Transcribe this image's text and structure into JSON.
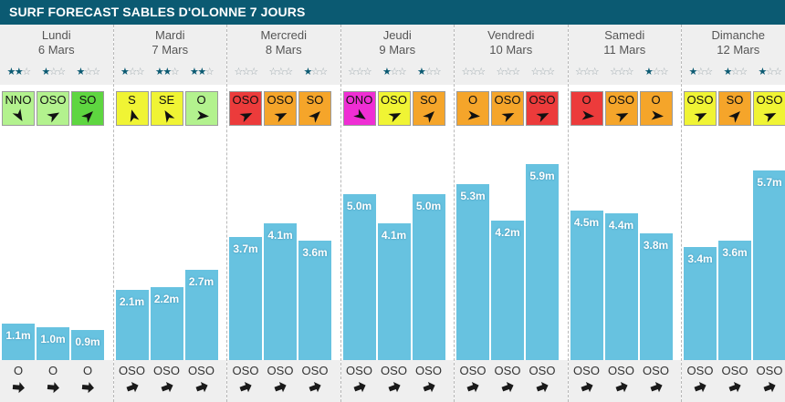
{
  "title": "SURF FORECAST SABLES D'OLONNE 7 JOURS",
  "colors": {
    "title_bg": "#0b5a72",
    "bar": "#67c2e0",
    "star_filled": "#0b5a72",
    "wind_light_green": "#b3f28e",
    "wind_green": "#5ed640",
    "wind_yellow": "#f0f434",
    "wind_orange": "#f5a52a",
    "wind_red": "#ec3b3b",
    "wind_magenta": "#ef2ed4"
  },
  "chart_data": {
    "type": "bar",
    "ylabel": "",
    "unit": "m",
    "days": [
      {
        "name": "Lundi",
        "date": "6 Mars",
        "slots": [
          {
            "stars": 2,
            "wind": "NNO",
            "wind_color": "#b3f28e",
            "wind_arrow_deg": 150,
            "height": 1.1,
            "label": "1.1m",
            "swell_dir": "O",
            "swell_arrow_deg": 95
          },
          {
            "stars": 1,
            "wind": "OSO",
            "wind_color": "#b3f28e",
            "wind_arrow_deg": 60,
            "height": 1.0,
            "label": "1.0m",
            "swell_dir": "O",
            "swell_arrow_deg": 95
          },
          {
            "stars": 1,
            "wind": "SO",
            "wind_color": "#5ed640",
            "wind_arrow_deg": 45,
            "height": 0.9,
            "label": "0.9m",
            "swell_dir": "O",
            "swell_arrow_deg": 95
          }
        ]
      },
      {
        "name": "Mardi",
        "date": "7 Mars",
        "slots": [
          {
            "stars": 1,
            "wind": "S",
            "wind_color": "#f0f434",
            "wind_arrow_deg": -15,
            "height": 2.1,
            "label": "2.1m",
            "swell_dir": "OSO",
            "swell_arrow_deg": 70
          },
          {
            "stars": 2,
            "wind": "SE",
            "wind_color": "#f0f434",
            "wind_arrow_deg": -30,
            "height": 2.2,
            "label": "2.2m",
            "swell_dir": "OSO",
            "swell_arrow_deg": 70
          },
          {
            "stars": 2,
            "wind": "O",
            "wind_color": "#b3f28e",
            "wind_arrow_deg": 95,
            "height": 2.7,
            "label": "2.7m",
            "swell_dir": "OSO",
            "swell_arrow_deg": 70
          }
        ]
      },
      {
        "name": "Mercredi",
        "date": "8 Mars",
        "slots": [
          {
            "stars": 0,
            "wind": "OSO",
            "wind_color": "#ec3b3b",
            "wind_arrow_deg": 65,
            "height": 3.7,
            "label": "3.7m",
            "swell_dir": "OSO",
            "swell_arrow_deg": 70
          },
          {
            "stars": 0,
            "wind": "OSO",
            "wind_color": "#f5a52a",
            "wind_arrow_deg": 65,
            "height": 4.1,
            "label": "4.1m",
            "swell_dir": "OSO",
            "swell_arrow_deg": 70
          },
          {
            "stars": 1,
            "wind": "SO",
            "wind_color": "#f5a52a",
            "wind_arrow_deg": 45,
            "height": 3.6,
            "label": "3.6m",
            "swell_dir": "OSO",
            "swell_arrow_deg": 70
          }
        ]
      },
      {
        "name": "Jeudi",
        "date": "9 Mars",
        "slots": [
          {
            "stars": 0,
            "wind": "ONO",
            "wind_color": "#ef2ed4",
            "wind_arrow_deg": 125,
            "height": 5.0,
            "label": "5.0m",
            "swell_dir": "OSO",
            "swell_arrow_deg": 70
          },
          {
            "stars": 1,
            "wind": "OSO",
            "wind_color": "#f0f434",
            "wind_arrow_deg": 65,
            "height": 4.1,
            "label": "4.1m",
            "swell_dir": "OSO",
            "swell_arrow_deg": 70
          },
          {
            "stars": 1,
            "wind": "SO",
            "wind_color": "#f5a52a",
            "wind_arrow_deg": 45,
            "height": 5.0,
            "label": "5.0m",
            "swell_dir": "OSO",
            "swell_arrow_deg": 70
          }
        ]
      },
      {
        "name": "Vendredi",
        "date": "10 Mars",
        "slots": [
          {
            "stars": 0,
            "wind": "O",
            "wind_color": "#f5a52a",
            "wind_arrow_deg": 95,
            "height": 5.3,
            "label": "5.3m",
            "swell_dir": "OSO",
            "swell_arrow_deg": 70
          },
          {
            "stars": 0,
            "wind": "OSO",
            "wind_color": "#f5a52a",
            "wind_arrow_deg": 65,
            "height": 4.2,
            "label": "4.2m",
            "swell_dir": "OSO",
            "swell_arrow_deg": 70
          },
          {
            "stars": 0,
            "wind": "OSO",
            "wind_color": "#ec3b3b",
            "wind_arrow_deg": 65,
            "height": 5.9,
            "label": "5.9m",
            "swell_dir": "OSO",
            "swell_arrow_deg": 70
          }
        ]
      },
      {
        "name": "Samedi",
        "date": "11 Mars",
        "slots": [
          {
            "stars": 0,
            "wind": "O",
            "wind_color": "#ec3b3b",
            "wind_arrow_deg": 95,
            "height": 4.5,
            "label": "4.5m",
            "swell_dir": "OSO",
            "swell_arrow_deg": 70
          },
          {
            "stars": 0,
            "wind": "OSO",
            "wind_color": "#f5a52a",
            "wind_arrow_deg": 65,
            "height": 4.4,
            "label": "4.4m",
            "swell_dir": "OSO",
            "swell_arrow_deg": 70
          },
          {
            "stars": 1,
            "wind": "O",
            "wind_color": "#f5a52a",
            "wind_arrow_deg": 95,
            "height": 3.8,
            "label": "3.8m",
            "swell_dir": "OSO",
            "swell_arrow_deg": 70
          }
        ]
      },
      {
        "name": "Dimanche",
        "date": "12 Mars",
        "slots": [
          {
            "stars": 1,
            "wind": "OSO",
            "wind_color": "#f0f434",
            "wind_arrow_deg": 65,
            "height": 3.4,
            "label": "3.4m",
            "swell_dir": "OSO",
            "swell_arrow_deg": 70
          },
          {
            "stars": 1,
            "wind": "SO",
            "wind_color": "#f5a52a",
            "wind_arrow_deg": 45,
            "height": 3.6,
            "label": "3.6m",
            "swell_dir": "OSO",
            "swell_arrow_deg": 70
          },
          {
            "stars": 1,
            "wind": "OSO",
            "wind_color": "#f0f434",
            "wind_arrow_deg": 65,
            "height": 5.7,
            "label": "5.7m",
            "swell_dir": "OSO",
            "swell_arrow_deg": 70
          }
        ]
      }
    ]
  }
}
